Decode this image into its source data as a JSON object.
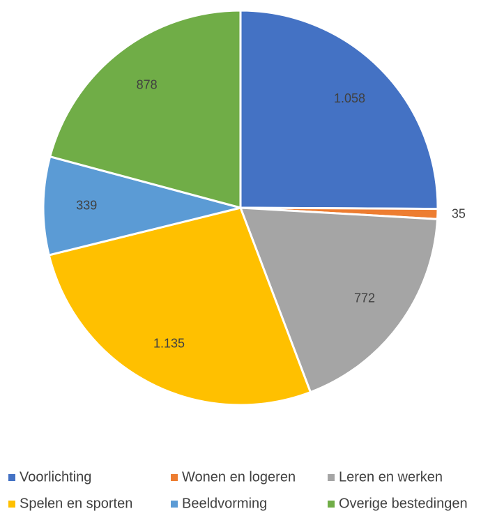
{
  "chart_data": {
    "type": "pie",
    "categories": [
      "Voorlichting",
      "Wonen en logeren",
      "Leren en werken",
      "Spelen en sporten",
      "Beeldvorming",
      "Overige bestedingen"
    ],
    "values": [
      1058,
      35,
      772,
      1135,
      339,
      878
    ],
    "value_labels": [
      "1.058",
      "35",
      "772",
      "1.135",
      "339",
      "878"
    ],
    "colors": [
      "#4472c4",
      "#ed7d31",
      "#a5a5a5",
      "#ffc000",
      "#5b9bd5",
      "#70ad47"
    ],
    "legend": "bottom"
  }
}
